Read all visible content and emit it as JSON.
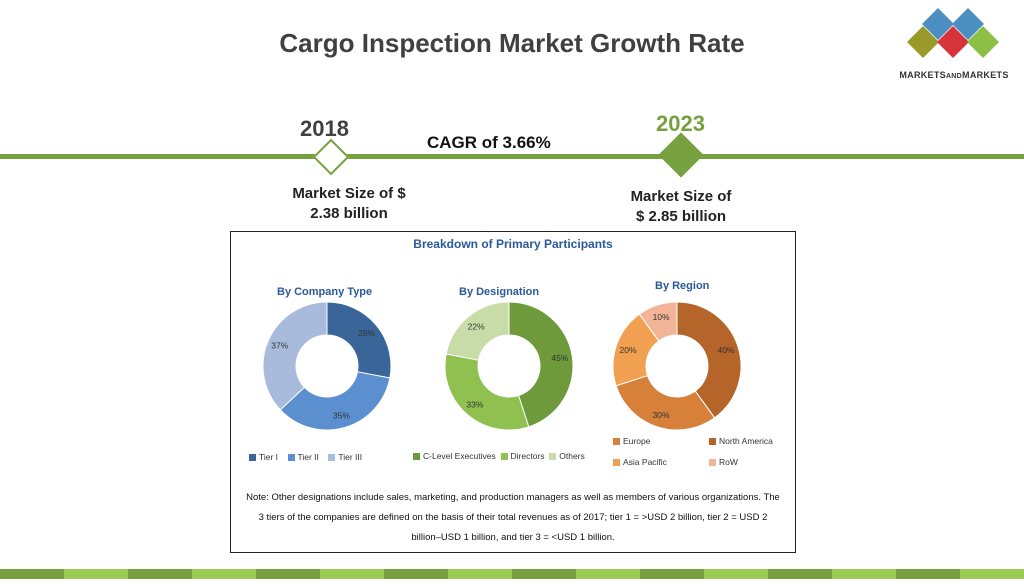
{
  "title": "Cargo Inspection Market Growth Rate",
  "logo": {
    "text_main_1": "MARKETS",
    "text_and": "AND",
    "text_main_2": "MARKETS"
  },
  "timeline": {
    "year_start": "2018",
    "year_end": "2023",
    "cagr": "CAGR of 3.66%",
    "market_start_line1": "Market Size of $",
    "market_start_line2": "2.38 billion",
    "market_end_line1": "Market Size of",
    "market_end_line2": "$ 2.85 billion",
    "accent": "#77a141"
  },
  "panel": {
    "title": "Breakdown of Primary Participants",
    "note": "Note: Other designations include sales, marketing, and production managers as well as members of various organizations. The 3 tiers of the companies are defined on the basis of their total revenues as of 2017; tier 1 = >USD 2 billion, tier 2 = USD 2 billion–USD 1 billion, and tier 3 = <USD 1 billion."
  },
  "chart_data": [
    {
      "type": "pie",
      "title": "By Company Type",
      "categories": [
        "Tier I",
        "Tier II",
        "Tier III"
      ],
      "values": [
        28,
        35,
        37
      ],
      "labels": [
        "28%",
        "35%",
        "37%"
      ],
      "colors": [
        "#3a6598",
        "#5b8fd0",
        "#a9bbdc"
      ]
    },
    {
      "type": "pie",
      "title": "By Designation",
      "categories": [
        "C-Level Executives",
        "Directors",
        "Others"
      ],
      "values": [
        45,
        33,
        22
      ],
      "labels": [
        "45%",
        "33%",
        "22%"
      ],
      "colors": [
        "#6e9a3c",
        "#8fc050",
        "#c8dca8"
      ]
    },
    {
      "type": "pie",
      "title": "By Region",
      "categories": [
        "North America",
        "Europe",
        "Asia Pacific",
        "RoW"
      ],
      "values": [
        40,
        30,
        20,
        10
      ],
      "labels": [
        "40%",
        "30%",
        "20%",
        "10%"
      ],
      "colors": [
        "#b5652a",
        "#d6803a",
        "#f0a050",
        "#f2b496"
      ]
    }
  ],
  "legends": {
    "company": [
      "Tier I",
      "Tier II",
      "Tier III"
    ],
    "designation": [
      "C-Level Executives",
      "Directors",
      "Others"
    ],
    "region": [
      "Europe",
      "North America",
      "Asia Pacific",
      "RoW"
    ]
  }
}
